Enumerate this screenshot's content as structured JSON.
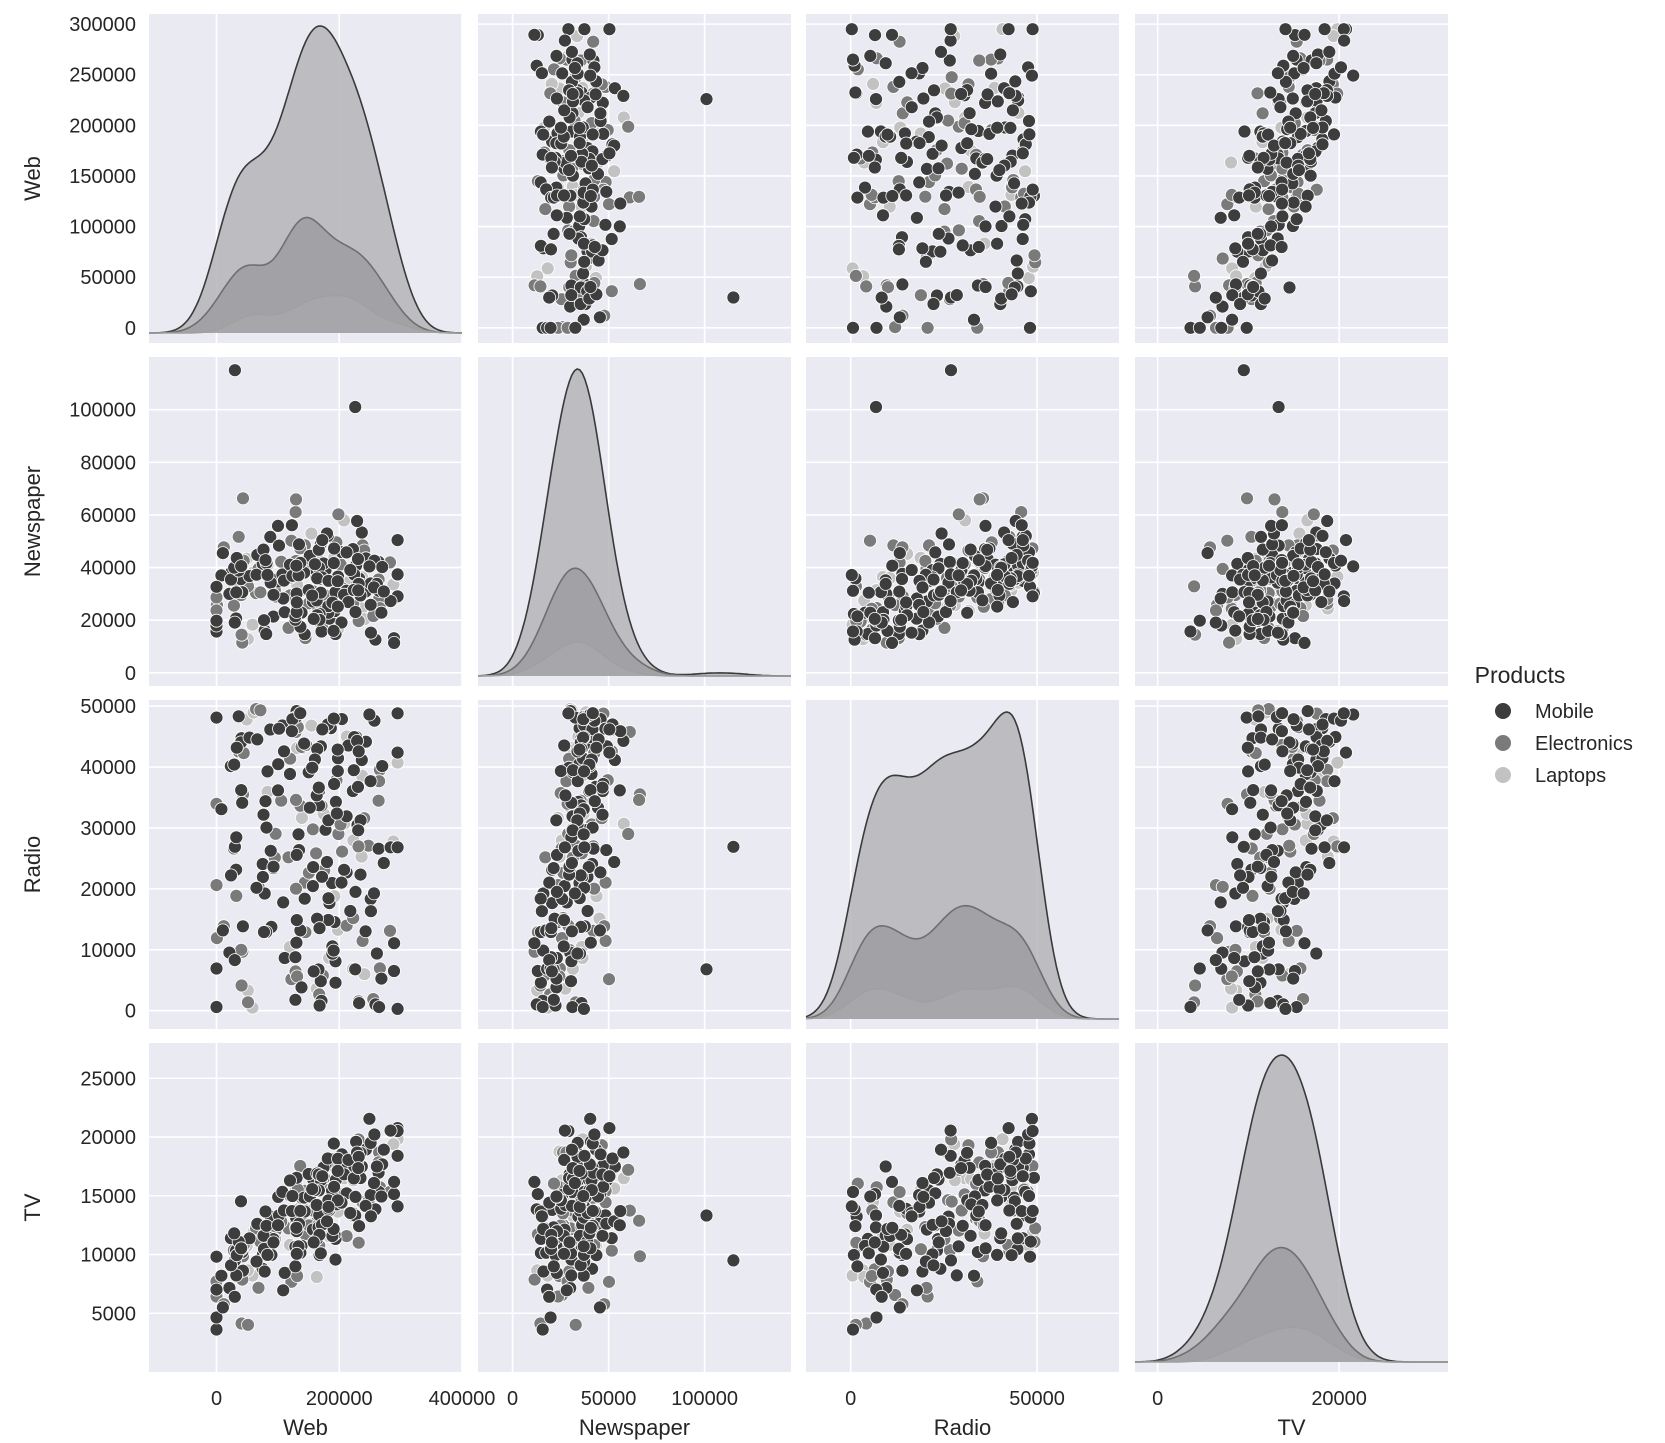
{
  "chart_data": {
    "type": "scatter",
    "kind": "pairplot",
    "variables": [
      "Web",
      "Newspaper",
      "Radio",
      "TV"
    ],
    "axis_labels": {
      "x": [
        "Web",
        "Newspaper",
        "Radio",
        "TV"
      ],
      "y": [
        "Web",
        "Newspaper",
        "Radio",
        "TV"
      ]
    },
    "x_ticks": {
      "Web": [
        0,
        200000,
        400000
      ],
      "Newspaper": [
        0,
        50000,
        100000
      ],
      "Radio": [
        0,
        50000
      ],
      "TV": [
        0,
        20000
      ]
    },
    "y_ticks": {
      "Web": [
        0,
        50000,
        100000,
        150000,
        200000,
        250000,
        300000
      ],
      "Newspaper": [
        0,
        20000,
        40000,
        60000,
        80000,
        100000
      ],
      "Radio": [
        0,
        10000,
        20000,
        30000,
        40000,
        50000
      ],
      "TV": [
        5000,
        10000,
        15000,
        20000,
        25000
      ]
    },
    "x_ranges": {
      "Web": [
        -110000,
        400000
      ],
      "Newspaper": [
        -18000,
        145000
      ],
      "Radio": [
        -12000,
        72000
      ],
      "TV": [
        -2500,
        32000
      ]
    },
    "y_ranges": {
      "Web": [
        -15000,
        310000
      ],
      "Newspaper": [
        -5000,
        120000
      ],
      "Radio": [
        -3000,
        51000
      ],
      "TV": [
        0,
        28000
      ]
    },
    "grid": true,
    "legend": {
      "title": "Products",
      "position": "right",
      "entries": [
        "Mobile",
        "Electronics",
        "Laptops"
      ]
    },
    "series": [
      {
        "name": "Mobile",
        "color": "#3d3d3d",
        "points": []
      },
      {
        "name": "Electronics",
        "color": "#7a7a7a",
        "points": []
      },
      {
        "name": "Laptops",
        "color": "#c2c2c2",
        "points": []
      }
    ]
  },
  "colors": {
    "panel_bg": "#eaeaf2",
    "grid": "#ffffff",
    "mobile": "#3d3d3d",
    "electronics": "#7a7a7a",
    "laptops": "#c2c2c2"
  }
}
